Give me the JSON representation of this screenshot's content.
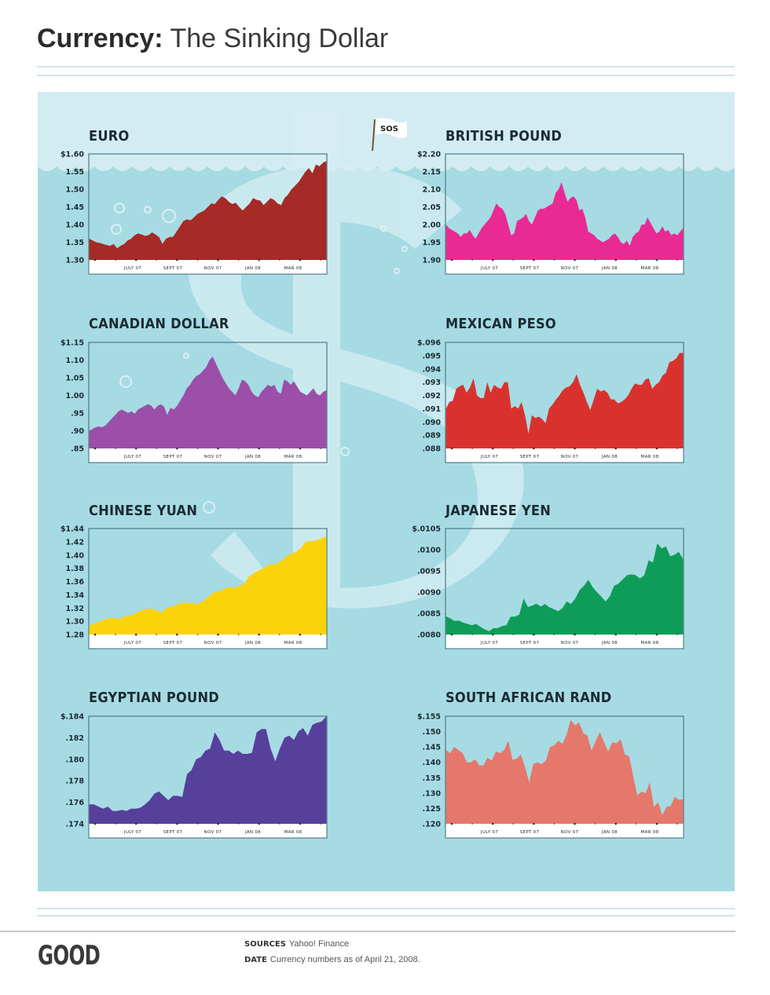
{
  "header": {
    "title_bold": "Currency:",
    "title_rest": " The Sinking Dollar"
  },
  "flag": {
    "text": "SOS"
  },
  "colors": {
    "panel": "#a6dbe3",
    "panel_light": "#d2ecf2",
    "euro": "#a62a25",
    "british_pound": "#ea2a93",
    "canadian_dollar": "#9b4fa8",
    "mexican_peso": "#d9322e",
    "chinese_yuan": "#fbd30a",
    "japanese_yen": "#0f9c58",
    "egyptian_pound": "#573f9c",
    "south_african_rand": "#e5786a"
  },
  "chart_data": [
    {
      "type": "area",
      "title": "EURO",
      "color_key": "euro",
      "ylim": [
        1.3,
        1.6
      ],
      "yticks": [
        "$1.60",
        "1.55",
        "1.50",
        "1.45",
        "1.40",
        "1.35",
        "1.30"
      ],
      "xticks": [
        "JULY 07",
        "SEPT 07",
        "NOV 07",
        "JAN 08",
        "MAR 08"
      ],
      "values": [
        1.36,
        1.355,
        1.35,
        1.348,
        1.345,
        1.342,
        1.34,
        1.345,
        1.333,
        1.34,
        1.345,
        1.355,
        1.36,
        1.37,
        1.375,
        1.372,
        1.368,
        1.37,
        1.378,
        1.372,
        1.365,
        1.345,
        1.36,
        1.365,
        1.365,
        1.38,
        1.395,
        1.41,
        1.415,
        1.412,
        1.42,
        1.43,
        1.435,
        1.44,
        1.45,
        1.46,
        1.458,
        1.47,
        1.48,
        1.475,
        1.465,
        1.458,
        1.462,
        1.45,
        1.44,
        1.45,
        1.46,
        1.475,
        1.47,
        1.468,
        1.455,
        1.465,
        1.475,
        1.47,
        1.46,
        1.455,
        1.475,
        1.485,
        1.5,
        1.51,
        1.52,
        1.535,
        1.55,
        1.56,
        1.545,
        1.57,
        1.565,
        1.575,
        1.58
      ]
    },
    {
      "type": "area",
      "title": "BRITISH POUND",
      "color_key": "british_pound",
      "ylim": [
        1.9,
        2.2
      ],
      "yticks": [
        "$2.20",
        "2.15",
        "2.10",
        "2.05",
        "2.00",
        "1.95",
        "1.90"
      ],
      "xticks": [
        "JULY 07",
        "SEPT 07",
        "NOV 07",
        "JAN 08",
        "MAR 08"
      ],
      "values": [
        2.0,
        1.99,
        1.985,
        1.98,
        1.975,
        1.965,
        1.975,
        1.975,
        1.985,
        1.97,
        1.96,
        1.975,
        1.99,
        2.0,
        2.01,
        2.02,
        2.04,
        2.06,
        2.05,
        2.045,
        2.03,
        2.0,
        1.97,
        1.975,
        2.01,
        2.015,
        2.02,
        2.03,
        2.01,
        2.0,
        2.02,
        2.04,
        2.045,
        2.045,
        2.05,
        2.055,
        2.06,
        2.09,
        2.1,
        2.12,
        2.09,
        2.065,
        2.075,
        2.08,
        2.07,
        2.04,
        2.045,
        2.02,
        1.98,
        1.975,
        1.97,
        1.96,
        1.955,
        1.95,
        1.955,
        1.96,
        1.97,
        1.975,
        1.965,
        1.95,
        1.945,
        1.955,
        1.94,
        1.965,
        1.975,
        1.98,
        2.0,
        2.0,
        2.02,
        2.005,
        1.99,
        1.975,
        1.98,
        1.995,
        1.98,
        1.985,
        1.97,
        1.975,
        1.97,
        1.98,
        1.99
      ]
    },
    {
      "type": "area",
      "title": "CANADIAN DOLLAR",
      "color_key": "canadian_dollar",
      "ylim": [
        0.85,
        1.15
      ],
      "yticks": [
        "$1.15",
        "1.10",
        "1.05",
        "1.00",
        ".95",
        ".90",
        ".85"
      ],
      "xticks": [
        "JULY 07",
        "SEPT 07",
        "NOV 07",
        "JAN 08",
        "MAR 08"
      ],
      "values": [
        0.9,
        0.905,
        0.91,
        0.912,
        0.91,
        0.915,
        0.925,
        0.935,
        0.945,
        0.955,
        0.96,
        0.955,
        0.95,
        0.955,
        0.948,
        0.96,
        0.965,
        0.97,
        0.975,
        0.972,
        0.96,
        0.97,
        0.975,
        0.968,
        0.945,
        0.965,
        0.96,
        0.97,
        0.985,
        1.0,
        1.02,
        1.03,
        1.045,
        1.055,
        1.06,
        1.07,
        1.08,
        1.1,
        1.11,
        1.09,
        1.07,
        1.05,
        1.035,
        1.02,
        1.01,
        1.0,
        1.02,
        1.045,
        1.04,
        1.03,
        1.01,
        1.0,
        0.995,
        1.01,
        1.02,
        1.03,
        1.025,
        1.03,
        1.01,
        1.005,
        1.045,
        1.04,
        1.03,
        1.04,
        1.025,
        1.01,
        1.005,
        1.0,
        1.01,
        1.02,
        1.005,
        1.0,
        1.01,
        1.015
      ]
    },
    {
      "type": "area",
      "title": "MEXICAN PESO",
      "color_key": "mexican_peso",
      "ylim": [
        0.088,
        0.096
      ],
      "yticks": [
        "$.096",
        ".095",
        ".094",
        ".093",
        ".092",
        ".091",
        ".090",
        ".089",
        ".088"
      ],
      "xticks": [
        "JULY 07",
        "SEPT 07",
        "NOV 07",
        "JAN 08",
        "MAR 08"
      ],
      "values": [
        0.091,
        0.0915,
        0.0916,
        0.0925,
        0.0927,
        0.0928,
        0.0922,
        0.0926,
        0.0933,
        0.092,
        0.0918,
        0.0918,
        0.093,
        0.0922,
        0.0928,
        0.0926,
        0.0925,
        0.093,
        0.093,
        0.091,
        0.0912,
        0.091,
        0.0915,
        0.0905,
        0.0891,
        0.0905,
        0.0903,
        0.0904,
        0.0902,
        0.0899,
        0.091,
        0.0913,
        0.0917,
        0.092,
        0.0924,
        0.0926,
        0.0927,
        0.093,
        0.0936,
        0.0928,
        0.0922,
        0.0915,
        0.0909,
        0.0917,
        0.0925,
        0.0923,
        0.0924,
        0.0922,
        0.0917,
        0.0917,
        0.0914,
        0.0915,
        0.0917,
        0.092,
        0.0925,
        0.0929,
        0.0928,
        0.0928,
        0.0932,
        0.0933,
        0.0925,
        0.0928,
        0.093,
        0.0935,
        0.0937,
        0.0945,
        0.0946,
        0.0948,
        0.0952,
        0.0952
      ]
    },
    {
      "type": "area",
      "title": "CHINESE YUAN",
      "color_key": "chinese_yuan",
      "ylim": [
        1.28,
        1.44
      ],
      "yticks": [
        "$1.44",
        "1.42",
        "1.40",
        "1.38",
        "1.36",
        "1.34",
        "1.32",
        "1.30",
        "1.28"
      ],
      "xticks": [
        "JULY 07",
        "SEPT 07",
        "NOV 07",
        "JAN 08",
        "MAR 08"
      ],
      "values": [
        1.293,
        1.297,
        1.3,
        1.303,
        1.305,
        1.305,
        1.303,
        1.308,
        1.309,
        1.312,
        1.316,
        1.319,
        1.319,
        1.317,
        1.313,
        1.32,
        1.322,
        1.325,
        1.328,
        1.328,
        1.327,
        1.326,
        1.33,
        1.336,
        1.343,
        1.345,
        1.348,
        1.352,
        1.35,
        1.353,
        1.356,
        1.368,
        1.373,
        1.377,
        1.381,
        1.386,
        1.386,
        1.39,
        1.396,
        1.402,
        1.404,
        1.41,
        1.42,
        1.421,
        1.422,
        1.425,
        1.428
      ]
    },
    {
      "type": "area",
      "title": "JAPANESE YEN",
      "color_key": "japanese_yen",
      "ylim": [
        0.008,
        0.0105
      ],
      "yticks": [
        "$.0105",
        ".0100",
        ".0095",
        ".0090",
        ".0085",
        ".0080"
      ],
      "xticks": [
        "JULY 07",
        "SEPT 07",
        "NOV 07",
        "JAN 08",
        "MAR 08"
      ],
      "values": [
        0.00843,
        0.00838,
        0.00832,
        0.00833,
        0.00828,
        0.00825,
        0.00822,
        0.00825,
        0.00818,
        0.00812,
        0.00808,
        0.00815,
        0.00815,
        0.0082,
        0.00822,
        0.00842,
        0.00842,
        0.00847,
        0.00885,
        0.00865,
        0.00868,
        0.00873,
        0.00866,
        0.00872,
        0.00864,
        0.0086,
        0.00855,
        0.00862,
        0.00878,
        0.00872,
        0.00885,
        0.00905,
        0.00915,
        0.00929,
        0.00912,
        0.009,
        0.0089,
        0.00878,
        0.0089,
        0.00915,
        0.0092,
        0.0093,
        0.0094,
        0.00942,
        0.0094,
        0.00932,
        0.0094,
        0.00975,
        0.0097,
        0.01015,
        0.01003,
        0.01008,
        0.00985,
        0.00988,
        0.00995,
        0.00978
      ]
    },
    {
      "type": "area",
      "title": "EGYPTIAN POUND",
      "color_key": "egyptian_pound",
      "ylim": [
        0.174,
        0.184
      ],
      "yticks": [
        "$.184",
        ".182",
        ".180",
        ".178",
        ".176",
        ".174"
      ],
      "xticks": [
        "JULY 07",
        "SEPT 07",
        "NOV 07",
        "JAN 08",
        "MAR 08"
      ],
      "values": [
        0.1758,
        0.1758,
        0.1756,
        0.1754,
        0.1756,
        0.1752,
        0.1752,
        0.1753,
        0.1752,
        0.1754,
        0.1754,
        0.1755,
        0.1758,
        0.1762,
        0.1768,
        0.177,
        0.1766,
        0.1762,
        0.1766,
        0.1766,
        0.1765,
        0.1786,
        0.179,
        0.18,
        0.1802,
        0.1808,
        0.181,
        0.1825,
        0.1818,
        0.1808,
        0.1808,
        0.1805,
        0.1808,
        0.1805,
        0.1805,
        0.1806,
        0.1825,
        0.1828,
        0.1828,
        0.181,
        0.1798,
        0.181,
        0.182,
        0.1822,
        0.1818,
        0.1826,
        0.1829,
        0.1822,
        0.1832,
        0.1834,
        0.1835,
        0.184
      ]
    },
    {
      "type": "area",
      "title": "SOUTH AFRICAN RAND",
      "color_key": "south_african_rand",
      "ylim": [
        0.12,
        0.155
      ],
      "yticks": [
        "$.155",
        ".150",
        ".145",
        ".140",
        ".135",
        ".130",
        ".125",
        ".120"
      ],
      "xticks": [
        "JULY 07",
        "SEPT 07",
        "NOV 07",
        "JAN 08",
        "MAR 08"
      ],
      "values": [
        0.144,
        0.143,
        0.145,
        0.144,
        0.143,
        0.14,
        0.14,
        0.141,
        0.139,
        0.139,
        0.1415,
        0.1405,
        0.1435,
        0.143,
        0.144,
        0.147,
        0.1408,
        0.1412,
        0.1425,
        0.1385,
        0.1335,
        0.1395,
        0.14,
        0.1395,
        0.1405,
        0.145,
        0.1455,
        0.147,
        0.146,
        0.149,
        0.1538,
        0.152,
        0.153,
        0.1495,
        0.1487,
        0.1438,
        0.147,
        0.1498,
        0.1465,
        0.1435,
        0.1465,
        0.1462,
        0.1475,
        0.1425,
        0.142,
        0.1355,
        0.1292,
        0.1305,
        0.13,
        0.1335,
        0.1255,
        0.127,
        0.1228,
        0.1255,
        0.1258,
        0.1288,
        0.1278,
        0.128
      ]
    }
  ],
  "footer": {
    "logo": "GOOD",
    "sources_label": "SOURCES",
    "sources_value": "Yahoo! Finance",
    "date_label": "DATE",
    "date_value": "Currency numbers as of April 21, 2008."
  }
}
